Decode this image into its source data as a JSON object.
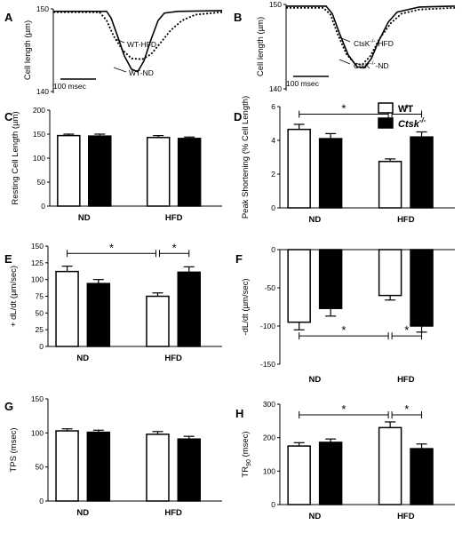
{
  "legend": {
    "entries": [
      {
        "label": "WT",
        "color": "#ffffff"
      },
      {
        "label": "Ctsk",
        "sup": "-/-",
        "color": "#000000"
      }
    ]
  },
  "chart_data": [
    {
      "id": "A",
      "type": "line",
      "panel_label": "A",
      "ylabel": "Cell length (µm)",
      "ylim": [
        140,
        150
      ],
      "yticks": [
        140,
        150
      ],
      "scale_bar": "100 msec",
      "series": [
        {
          "name": "WT-ND",
          "style": "solid",
          "x": [
            0,
            60,
            65,
            72,
            80,
            88,
            95,
            102,
            110,
            118,
            125,
            140,
            190
          ],
          "y": [
            149.7,
            149.7,
            148.9,
            146.8,
            144.3,
            142.7,
            142.4,
            143.7,
            146.3,
            148.6,
            149.5,
            149.7,
            149.8
          ]
        },
        {
          "name": "WT-HFD",
          "style": "dotted",
          "x": [
            0,
            52,
            60,
            68,
            78,
            88,
            100,
            110,
            120,
            132,
            145,
            160,
            190
          ],
          "y": [
            149.6,
            149.6,
            148.6,
            146.7,
            145.0,
            144.0,
            143.9,
            144.5,
            145.8,
            147.4,
            148.6,
            149.3,
            149.6
          ]
        }
      ]
    },
    {
      "id": "B",
      "type": "line",
      "panel_label": "B",
      "ylabel": "Cell length (µm)",
      "ylim": [
        140,
        150
      ],
      "yticks": [
        140,
        150
      ],
      "scale_bar": "100 msec",
      "series": [
        {
          "name": "CtsK-/-ND",
          "style": "solid",
          "x": [
            0,
            45,
            52,
            60,
            70,
            80,
            88,
            96,
            104,
            115,
            125,
            150,
            190
          ],
          "y": [
            149.8,
            149.8,
            148.9,
            146.6,
            144.0,
            142.6,
            142.5,
            143.6,
            145.6,
            147.9,
            149.1,
            149.7,
            149.8
          ]
        },
        {
          "name": "CtsK-/-HFD",
          "style": "dotted",
          "x": [
            0,
            42,
            50,
            58,
            68,
            78,
            86,
            95,
            105,
            118,
            130,
            150,
            190
          ],
          "y": [
            149.6,
            149.6,
            148.8,
            146.5,
            144.1,
            142.9,
            142.9,
            143.9,
            145.9,
            147.8,
            148.9,
            149.4,
            149.6
          ]
        }
      ]
    },
    {
      "id": "C",
      "type": "bar",
      "panel_label": "C",
      "ylabel": "Resting Cell Length (µm)",
      "ylim": [
        0,
        200
      ],
      "yticks": [
        0,
        50,
        100,
        150,
        200
      ],
      "categories": [
        "ND",
        "HFD"
      ],
      "series": [
        {
          "name": "WT",
          "values": [
            147,
            143
          ],
          "errors": [
            3,
            4
          ]
        },
        {
          "name": "Ctsk-/-",
          "values": [
            146,
            141
          ],
          "errors": [
            4,
            3
          ]
        }
      ],
      "significance": []
    },
    {
      "id": "D",
      "type": "bar",
      "panel_label": "D",
      "ylabel": "Peak Shortening (% Cell Length)",
      "ylim": [
        0,
        6
      ],
      "yticks": [
        0,
        2,
        4,
        6
      ],
      "categories": [
        "ND",
        "HFD"
      ],
      "series": [
        {
          "name": "WT",
          "values": [
            4.65,
            2.75
          ],
          "errors": [
            0.3,
            0.15
          ]
        },
        {
          "name": "Ctsk-/-",
          "values": [
            4.1,
            4.2
          ],
          "errors": [
            0.3,
            0.3
          ]
        }
      ],
      "significance": [
        {
          "label": "*",
          "level": 5.55
        }
      ]
    },
    {
      "id": "E",
      "type": "bar",
      "panel_label": "E",
      "ylabel": "+ dL/dt (µm/sec)",
      "ylim": [
        0,
        150
      ],
      "yticks": [
        0,
        25,
        50,
        75,
        100,
        125,
        150
      ],
      "categories": [
        "ND",
        "HFD"
      ],
      "series": [
        {
          "name": "WT",
          "values": [
            112,
            75
          ],
          "errors": [
            8,
            5
          ]
        },
        {
          "name": "Ctsk-/-",
          "values": [
            94,
            111
          ],
          "errors": [
            6,
            8
          ]
        }
      ],
      "significance": [
        {
          "label": "*",
          "level": 139
        }
      ]
    },
    {
      "id": "F",
      "type": "bar",
      "panel_label": "F",
      "ylabel": "-dL/dt (µm/sec)",
      "ylim": [
        -150,
        0
      ],
      "yticks": [
        -150,
        -100,
        -50,
        0
      ],
      "categories": [
        "ND",
        "HFD"
      ],
      "series": [
        {
          "name": "WT",
          "values": [
            -95,
            -60
          ],
          "errors": [
            10,
            6
          ]
        },
        {
          "name": "Ctsk-/-",
          "values": [
            -77,
            -100
          ],
          "errors": [
            10,
            8
          ]
        }
      ],
      "significance": [
        {
          "label": "*",
          "level": -113
        }
      ]
    },
    {
      "id": "G",
      "type": "bar",
      "panel_label": "G",
      "ylabel": "TPS (msec)",
      "ylim": [
        0,
        150
      ],
      "yticks": [
        0,
        50,
        100,
        150
      ],
      "categories": [
        "ND",
        "HFD"
      ],
      "series": [
        {
          "name": "WT",
          "values": [
            103,
            98
          ],
          "errors": [
            3,
            4
          ]
        },
        {
          "name": "Ctsk-/-",
          "values": [
            101,
            91
          ],
          "errors": [
            3,
            4
          ]
        }
      ],
      "significance": []
    },
    {
      "id": "H",
      "type": "bar",
      "panel_label": "H",
      "ylabel": "TR",
      "ylabel_sub": "90",
      "ylabel_unit": " (msec)",
      "ylim": [
        0,
        300
      ],
      "yticks": [
        0,
        100,
        200,
        300
      ],
      "categories": [
        "ND",
        "HFD"
      ],
      "series": [
        {
          "name": "WT",
          "values": [
            175,
            230
          ],
          "errors": [
            10,
            17
          ]
        },
        {
          "name": "Ctsk-/-",
          "values": [
            186,
            167
          ],
          "errors": [
            10,
            14
          ]
        }
      ],
      "significance": [
        {
          "label": "*",
          "level": 268
        }
      ]
    }
  ]
}
